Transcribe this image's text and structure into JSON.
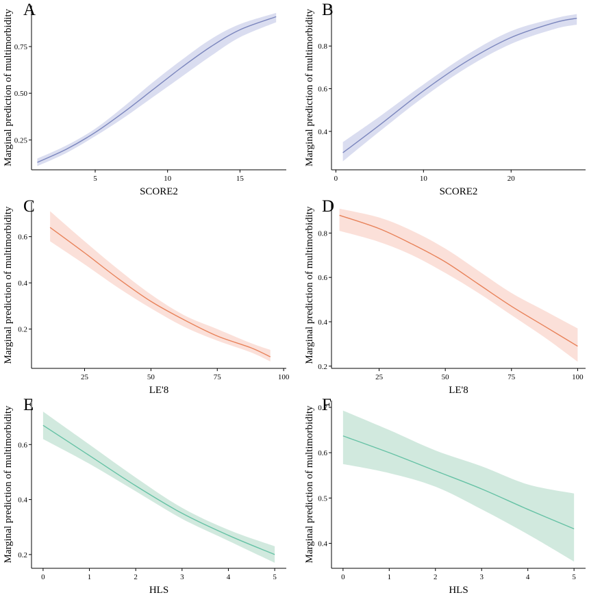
{
  "y_axis_title": "Marginal prediction of multimorbidity",
  "panels": [
    {
      "letter": "A",
      "chart_data": {
        "type": "line",
        "xlabel": "SCORE2",
        "ylabel": "Marginal prediction of multimorbidity",
        "xlim": [
          0.6,
          18.2
        ],
        "ylim": [
          0.09,
          0.97
        ],
        "xticks": [
          5,
          10,
          15
        ],
        "yticks": [
          0.25,
          0.5,
          0.75
        ],
        "ytick_format": "fixed2",
        "color": "#7b86bd",
        "band_color": "#d3d7ed",
        "x": [
          1,
          3,
          5,
          7,
          9,
          11,
          13,
          15,
          17.5
        ],
        "y": [
          0.13,
          0.2,
          0.29,
          0.4,
          0.52,
          0.64,
          0.75,
          0.84,
          0.91
        ],
        "lower": [
          0.11,
          0.18,
          0.27,
          0.37,
          0.48,
          0.59,
          0.7,
          0.8,
          0.88
        ],
        "upper": [
          0.15,
          0.22,
          0.31,
          0.43,
          0.56,
          0.68,
          0.79,
          0.87,
          0.93
        ],
        "grid": false,
        "legend": "none"
      }
    },
    {
      "letter": "B",
      "chart_data": {
        "type": "line",
        "xlabel": "SCORE2",
        "ylabel": "Marginal prediction of multimorbidity",
        "xlim": [
          -0.5,
          28.5
        ],
        "ylim": [
          0.22,
          0.99
        ],
        "xticks": [
          0,
          10,
          20
        ],
        "yticks": [
          0.4,
          0.6,
          0.8
        ],
        "ytick_format": "fixed1",
        "color": "#7b86bd",
        "band_color": "#d3d7ed",
        "x": [
          0.8,
          5,
          10,
          15,
          20,
          25,
          27.5
        ],
        "y": [
          0.3,
          0.43,
          0.59,
          0.73,
          0.84,
          0.91,
          0.93
        ],
        "lower": [
          0.26,
          0.4,
          0.56,
          0.7,
          0.81,
          0.88,
          0.9
        ],
        "upper": [
          0.35,
          0.47,
          0.62,
          0.76,
          0.87,
          0.93,
          0.95
        ],
        "grid": false,
        "legend": "none"
      }
    },
    {
      "letter": "C",
      "chart_data": {
        "type": "line",
        "xlabel": "LE'8",
        "ylabel": "Marginal prediction of multimorbidity",
        "xlim": [
          5,
          101
        ],
        "ylim": [
          0.03,
          0.75
        ],
        "xticks": [
          25,
          50,
          75,
          100
        ],
        "yticks": [
          0.2,
          0.4,
          0.6
        ],
        "ytick_format": "fixed1",
        "color": "#e8825a",
        "band_color": "#fadbd2",
        "x": [
          12,
          25,
          37.5,
          50,
          62.5,
          75,
          87.5,
          95
        ],
        "y": [
          0.64,
          0.53,
          0.42,
          0.32,
          0.24,
          0.17,
          0.12,
          0.08
        ],
        "lower": [
          0.58,
          0.48,
          0.38,
          0.29,
          0.21,
          0.15,
          0.1,
          0.06
        ],
        "upper": [
          0.71,
          0.58,
          0.46,
          0.35,
          0.26,
          0.2,
          0.14,
          0.11
        ],
        "grid": false,
        "legend": "none"
      }
    },
    {
      "letter": "D",
      "chart_data": {
        "type": "line",
        "xlabel": "LE'8",
        "ylabel": "Marginal prediction of multimorbidity",
        "xlim": [
          7,
          103
        ],
        "ylim": [
          0.19,
          0.94
        ],
        "xticks": [
          25,
          50,
          75,
          100
        ],
        "yticks": [
          0.2,
          0.4,
          0.6,
          0.8
        ],
        "ytick_format": "fixed1",
        "color": "#e8825a",
        "band_color": "#fadbd2",
        "x": [
          10,
          25,
          37.5,
          50,
          62.5,
          75,
          87.5,
          100
        ],
        "y": [
          0.88,
          0.82,
          0.75,
          0.67,
          0.57,
          0.47,
          0.38,
          0.29
        ],
        "lower": [
          0.81,
          0.76,
          0.7,
          0.62,
          0.53,
          0.43,
          0.33,
          0.22
        ],
        "upper": [
          0.91,
          0.87,
          0.81,
          0.73,
          0.63,
          0.53,
          0.45,
          0.37
        ],
        "grid": false,
        "legend": "none"
      }
    },
    {
      "letter": "E",
      "chart_data": {
        "type": "line",
        "xlabel": "HLS",
        "ylabel": "Marginal prediction of multimorbidity",
        "xlim": [
          -0.25,
          5.25
        ],
        "ylim": [
          0.15,
          0.76
        ],
        "xticks": [
          0,
          1,
          2,
          3,
          4,
          5
        ],
        "yticks": [
          0.2,
          0.4,
          0.6
        ],
        "ytick_format": "fixed1",
        "color": "#66c2a5",
        "band_color": "#c9e5d8",
        "x": [
          0,
          1,
          2,
          3,
          4,
          5
        ],
        "y": [
          0.67,
          0.56,
          0.45,
          0.35,
          0.27,
          0.2
        ],
        "lower": [
          0.62,
          0.53,
          0.43,
          0.33,
          0.25,
          0.17
        ],
        "upper": [
          0.72,
          0.6,
          0.48,
          0.37,
          0.29,
          0.23
        ],
        "grid": false,
        "legend": "none"
      }
    },
    {
      "letter": "F",
      "chart_data": {
        "type": "line",
        "xlabel": "HLS",
        "ylabel": "Marginal prediction of multimorbidity",
        "xlim": [
          -0.25,
          5.25
        ],
        "ylim": [
          0.345,
          0.715
        ],
        "xticks": [
          0,
          1,
          2,
          3,
          4,
          5
        ],
        "yticks": [
          0.4,
          0.5,
          0.6,
          0.7
        ],
        "ytick_format": "fixed1",
        "color": "#66c2a5",
        "band_color": "#c9e5d8",
        "x": [
          0,
          1,
          2,
          3,
          4,
          5
        ],
        "y": [
          0.637,
          0.6,
          0.56,
          0.52,
          0.475,
          0.432
        ],
        "lower": [
          0.575,
          0.555,
          0.525,
          0.475,
          0.42,
          0.36
        ],
        "upper": [
          0.693,
          0.65,
          0.605,
          0.57,
          0.53,
          0.51
        ],
        "grid": false,
        "legend": "none"
      }
    }
  ]
}
